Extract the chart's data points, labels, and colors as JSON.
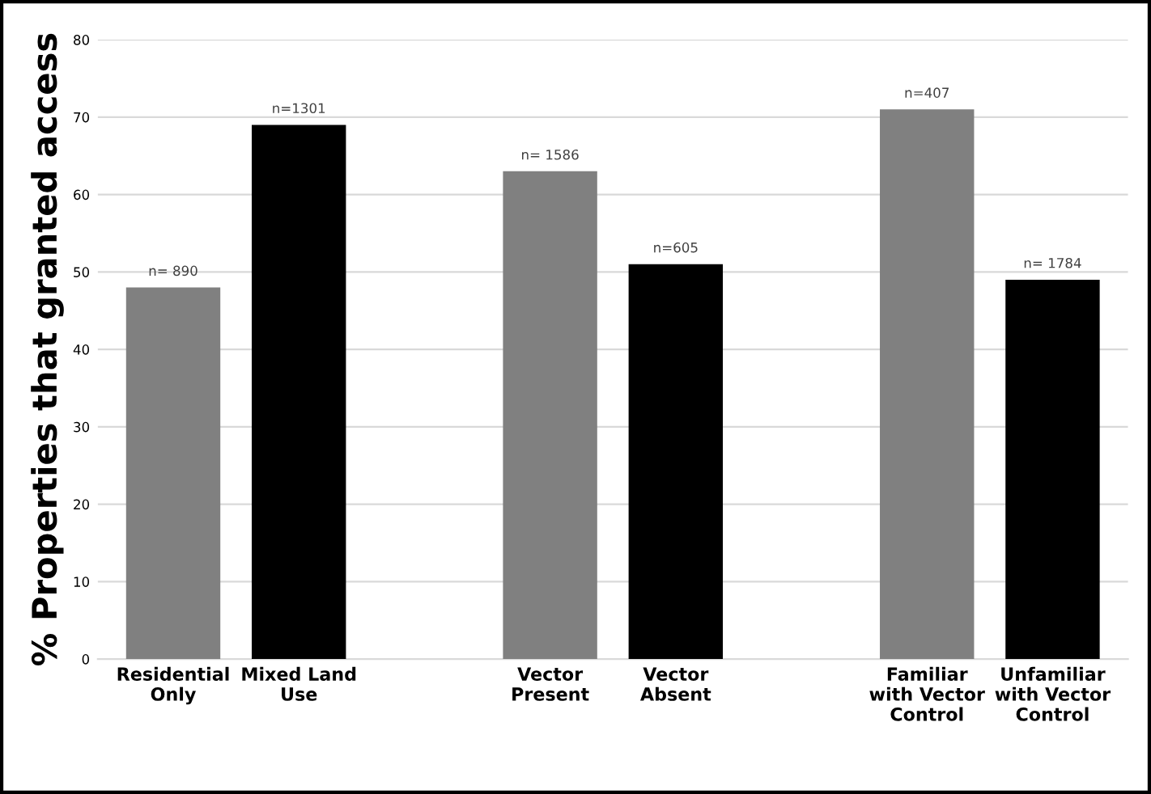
{
  "chart_data": {
    "type": "bar",
    "ylabel": "% Properties that granted access",
    "categories": [
      "Residential\nOnly",
      "Mixed Land\nUse",
      null,
      "Vector\nPresent",
      "Vector\nAbsent",
      null,
      "Familiar\nwith Vector\nControl",
      "Unfamiliar\nwith Vector\nControl"
    ],
    "values": [
      48,
      69,
      null,
      63,
      51,
      null,
      71,
      49
    ],
    "colors": [
      "#808080",
      "#000000",
      "#808080",
      "#808080",
      "#000000",
      "#808080",
      "#808080",
      "#000000"
    ],
    "annotations": [
      {
        "text": "n= 890",
        "x": "Residential\nOnly",
        "y": 48
      },
      {
        "text": "n=1301",
        "x": "Mixed Land\nUse",
        "y": 69
      },
      {
        "text": "n= 1586",
        "x": "Vector\nPresent",
        "y": 63
      },
      {
        "text": "n=605",
        "x": "Vector\nAbsent",
        "y": 51
      },
      {
        "text": "n=407",
        "x": "Familiar\nwith Vector\nControl",
        "y": 71
      },
      {
        "text": "n= 1784",
        "x": "Unfamiliar\nwith Vector\nControl",
        "y": 49
      }
    ],
    "ylim": [
      0,
      80
    ],
    "yticks": [
      0,
      10,
      20,
      30,
      40,
      50,
      60,
      70,
      80
    ],
    "grid": "y"
  }
}
